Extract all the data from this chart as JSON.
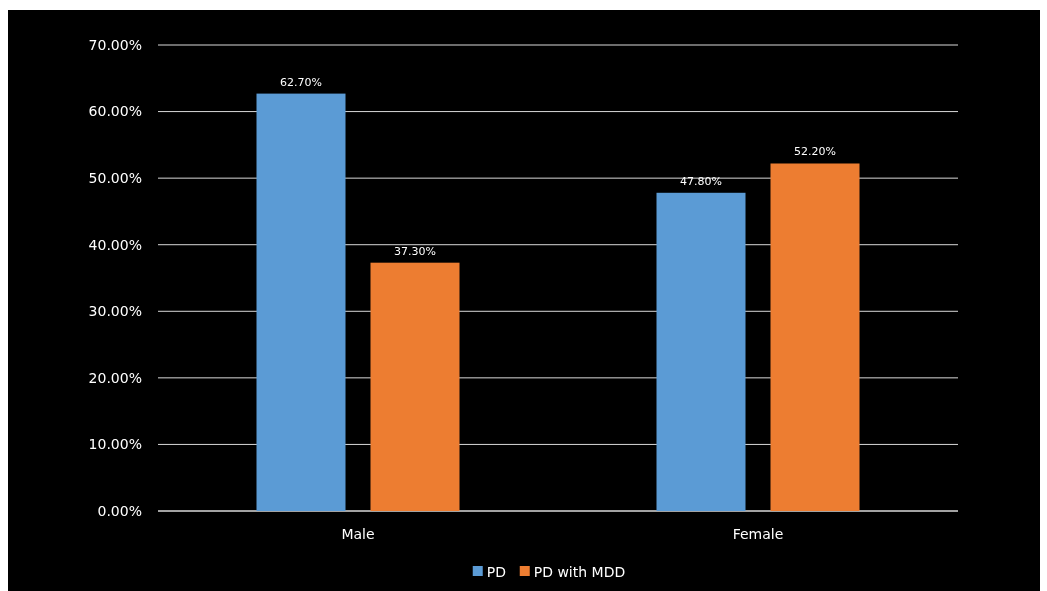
{
  "chart_data": {
    "type": "bar",
    "categories": [
      "Male",
      "Female"
    ],
    "series": [
      {
        "name": "PD",
        "color": "#5b9bd5",
        "values": [
          62.7,
          47.8
        ],
        "value_labels": [
          "62.70%",
          "47.80%"
        ]
      },
      {
        "name": "PD with MDD",
        "color": "#ed7d31",
        "values": [
          37.3,
          52.2
        ],
        "value_labels": [
          "37.30%",
          "52.20%"
        ]
      }
    ],
    "ylim": [
      0,
      70
    ],
    "yticks": [
      {
        "value": 0,
        "label": "0.00%"
      },
      {
        "value": 10,
        "label": "10.00%"
      },
      {
        "value": 20,
        "label": "20.00%"
      },
      {
        "value": 30,
        "label": "30.00%"
      },
      {
        "value": 40,
        "label": "40.00%"
      },
      {
        "value": 50,
        "label": "50.00%"
      },
      {
        "value": 60,
        "label": "60.00%"
      },
      {
        "value": 70,
        "label": "70.00%"
      }
    ],
    "grid": "y",
    "legend": "bottom"
  }
}
